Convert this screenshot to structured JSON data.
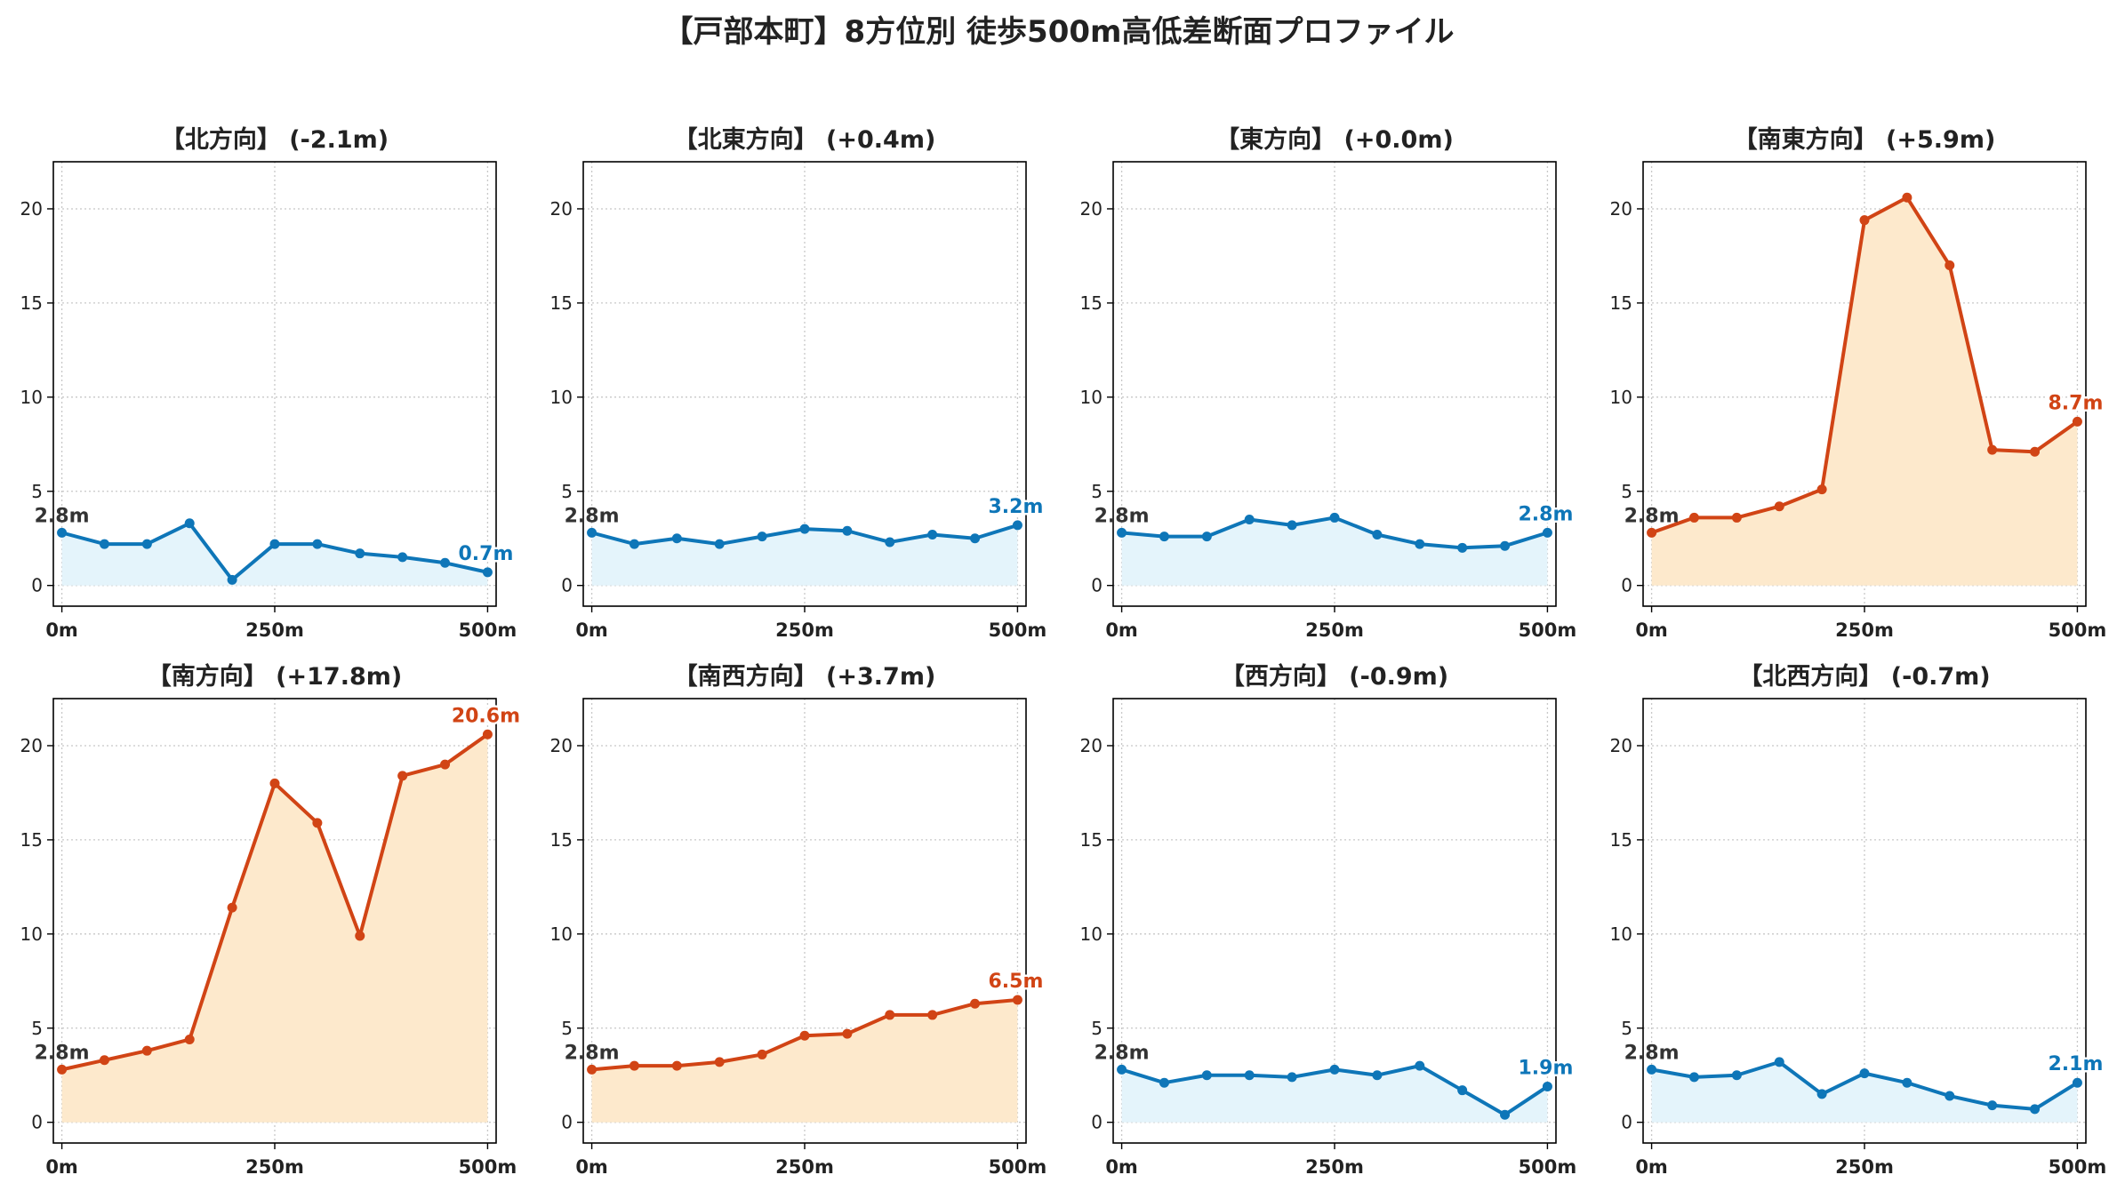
{
  "suptitle": "【戸部本町】8方位別 徒歩500m高低差断面プロファイル",
  "chart_data": [
    {
      "type": "line",
      "title": "【北方向】 (-2.1m)",
      "x": [
        0,
        50,
        100,
        150,
        200,
        250,
        300,
        350,
        400,
        450,
        500
      ],
      "values": [
        2.8,
        2.2,
        2.2,
        3.3,
        0.3,
        2.2,
        2.2,
        1.7,
        1.5,
        1.2,
        0.7
      ],
      "start_label": "2.8m",
      "end_label": "0.7m",
      "trend": "down",
      "xticks": [
        "0m",
        "250m",
        "500m"
      ],
      "yticks": [
        0,
        5,
        10,
        15,
        20
      ],
      "ylim": [
        -1.1,
        22.5
      ],
      "xlim": [
        -10,
        510
      ],
      "grid": true
    },
    {
      "type": "line",
      "title": "【北東方向】 (+0.4m)",
      "x": [
        0,
        50,
        100,
        150,
        200,
        250,
        300,
        350,
        400,
        450,
        500
      ],
      "values": [
        2.8,
        2.2,
        2.5,
        2.2,
        2.6,
        3.0,
        2.9,
        2.3,
        2.7,
        2.5,
        3.2
      ],
      "start_label": "2.8m",
      "end_label": "3.2m",
      "trend": "down",
      "xticks": [
        "0m",
        "250m",
        "500m"
      ],
      "yticks": [
        0,
        5,
        10,
        15,
        20
      ],
      "ylim": [
        -1.1,
        22.5
      ],
      "xlim": [
        -10,
        510
      ],
      "grid": true
    },
    {
      "type": "line",
      "title": "【東方向】 (+0.0m)",
      "x": [
        0,
        50,
        100,
        150,
        200,
        250,
        300,
        350,
        400,
        450,
        500
      ],
      "values": [
        2.8,
        2.6,
        2.6,
        3.5,
        3.2,
        3.6,
        2.7,
        2.2,
        2.0,
        2.1,
        2.8
      ],
      "start_label": "2.8m",
      "end_label": "2.8m",
      "trend": "down",
      "xticks": [
        "0m",
        "250m",
        "500m"
      ],
      "yticks": [
        0,
        5,
        10,
        15,
        20
      ],
      "ylim": [
        -1.1,
        22.5
      ],
      "xlim": [
        -10,
        510
      ],
      "grid": true
    },
    {
      "type": "line",
      "title": "【南東方向】 (+5.9m)",
      "x": [
        0,
        50,
        100,
        150,
        200,
        250,
        300,
        350,
        400,
        450,
        500
      ],
      "values": [
        2.8,
        3.6,
        3.6,
        4.2,
        5.1,
        19.4,
        20.6,
        17.0,
        7.2,
        7.1,
        8.7
      ],
      "start_label": "2.8m",
      "end_label": "8.7m",
      "trend": "up",
      "xticks": [
        "0m",
        "250m",
        "500m"
      ],
      "yticks": [
        0,
        5,
        10,
        15,
        20
      ],
      "ylim": [
        -1.1,
        22.5
      ],
      "xlim": [
        -10,
        510
      ],
      "grid": true
    },
    {
      "type": "line",
      "title": "【南方向】 (+17.8m)",
      "x": [
        0,
        50,
        100,
        150,
        200,
        250,
        300,
        350,
        400,
        450,
        500
      ],
      "values": [
        2.8,
        3.3,
        3.8,
        4.4,
        11.4,
        18.0,
        15.9,
        9.9,
        18.4,
        19.0,
        20.6
      ],
      "start_label": "2.8m",
      "end_label": "20.6m",
      "trend": "up",
      "xticks": [
        "0m",
        "250m",
        "500m"
      ],
      "yticks": [
        0,
        5,
        10,
        15,
        20
      ],
      "ylim": [
        -1.1,
        22.5
      ],
      "xlim": [
        -10,
        510
      ],
      "grid": true
    },
    {
      "type": "line",
      "title": "【南西方向】 (+3.7m)",
      "x": [
        0,
        50,
        100,
        150,
        200,
        250,
        300,
        350,
        400,
        450,
        500
      ],
      "values": [
        2.8,
        3.0,
        3.0,
        3.2,
        3.6,
        4.6,
        4.7,
        5.7,
        5.7,
        6.3,
        6.5
      ],
      "start_label": "2.8m",
      "end_label": "6.5m",
      "trend": "up",
      "xticks": [
        "0m",
        "250m",
        "500m"
      ],
      "yticks": [
        0,
        5,
        10,
        15,
        20
      ],
      "ylim": [
        -1.1,
        22.5
      ],
      "xlim": [
        -10,
        510
      ],
      "grid": true
    },
    {
      "type": "line",
      "title": "【西方向】 (-0.9m)",
      "x": [
        0,
        50,
        100,
        150,
        200,
        250,
        300,
        350,
        400,
        450,
        500
      ],
      "values": [
        2.8,
        2.1,
        2.5,
        2.5,
        2.4,
        2.8,
        2.5,
        3.0,
        1.7,
        0.4,
        1.9
      ],
      "start_label": "2.8m",
      "end_label": "1.9m",
      "trend": "down",
      "xticks": [
        "0m",
        "250m",
        "500m"
      ],
      "yticks": [
        0,
        5,
        10,
        15,
        20
      ],
      "ylim": [
        -1.1,
        22.5
      ],
      "xlim": [
        -10,
        510
      ],
      "grid": true
    },
    {
      "type": "line",
      "title": "【北西方向】 (-0.7m)",
      "x": [
        0,
        50,
        100,
        150,
        200,
        250,
        300,
        350,
        400,
        450,
        500
      ],
      "values": [
        2.8,
        2.4,
        2.5,
        3.2,
        1.5,
        2.6,
        2.1,
        1.4,
        0.9,
        0.7,
        2.1
      ],
      "start_label": "2.8m",
      "end_label": "2.1m",
      "trend": "down",
      "xticks": [
        "0m",
        "250m",
        "500m"
      ],
      "yticks": [
        0,
        5,
        10,
        15,
        20
      ],
      "ylim": [
        -1.1,
        22.5
      ],
      "xlim": [
        -10,
        510
      ],
      "grid": true
    }
  ],
  "colors": {
    "down_line": "#0e76b8",
    "down_fill": "#e4f4fb",
    "up_line": "#d14415",
    "up_fill": "#fde9cc",
    "start_label": "#333333",
    "grid": "#c8c8c8",
    "axis": "#000000",
    "text": "#222222"
  }
}
